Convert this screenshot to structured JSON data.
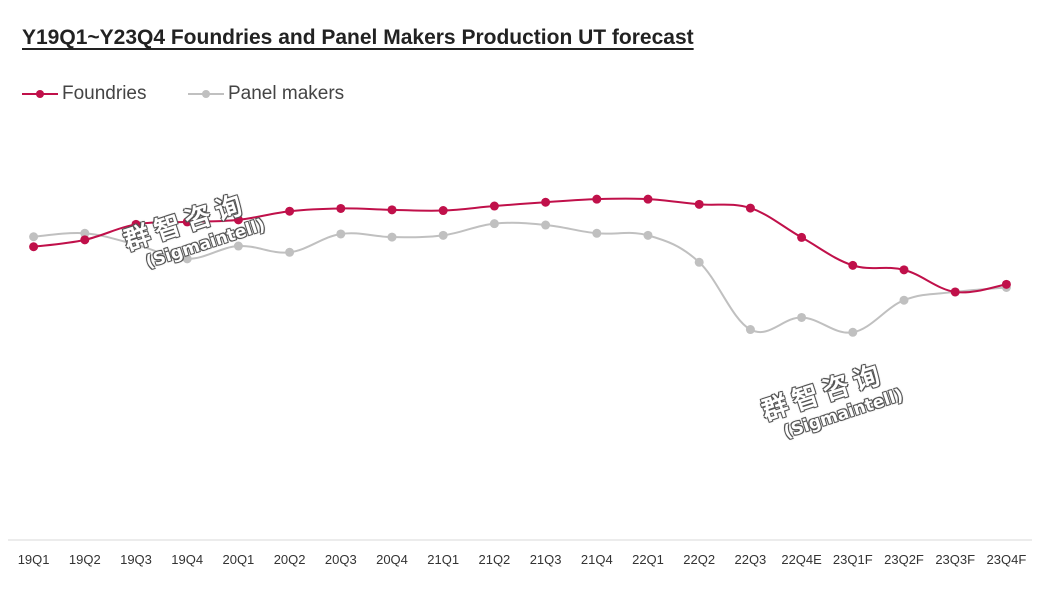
{
  "chart_data": {
    "type": "line",
    "title": "Y19Q1~Y23Q4 Foundries and Panel Makers Production UT forecast",
    "categories": [
      "19Q1",
      "19Q2",
      "19Q3",
      "19Q4",
      "20Q1",
      "20Q2",
      "20Q3",
      "20Q4",
      "21Q1",
      "21Q2",
      "21Q3",
      "21Q4",
      "22Q1",
      "22Q2",
      "22Q3",
      "22Q4E",
      "23Q1F",
      "23Q2F",
      "23Q3F",
      "23Q4F"
    ],
    "series": [
      {
        "name": "Foundries",
        "color": "#c0104a",
        "values": [
          85,
          87,
          91.5,
          92.2,
          92.8,
          95.3,
          96.1,
          95.7,
          95.5,
          96.8,
          97.9,
          98.8,
          98.8,
          97.3,
          96.2,
          87.7,
          79.6,
          78.3,
          71.9,
          74.1
        ]
      },
      {
        "name": "Panel makers",
        "color": "#c0c0c0",
        "values": [
          87.9,
          88.9,
          85.6,
          81.5,
          85.2,
          83.4,
          88.7,
          87.8,
          88.3,
          91.7,
          91.3,
          88.9,
          88.3,
          80.5,
          61,
          64.5,
          60.2,
          69.5,
          71.9,
          73.2
        ]
      }
    ],
    "ylim": [
      0,
      120
    ],
    "xlabel": "",
    "ylabel": "",
    "grid": false,
    "legend": "top-left"
  },
  "watermarks": [
    {
      "main": "群智咨询",
      "sub": "(Sigmaintell)"
    },
    {
      "main": "群智咨询",
      "sub": "(Sigmaintell)"
    }
  ]
}
